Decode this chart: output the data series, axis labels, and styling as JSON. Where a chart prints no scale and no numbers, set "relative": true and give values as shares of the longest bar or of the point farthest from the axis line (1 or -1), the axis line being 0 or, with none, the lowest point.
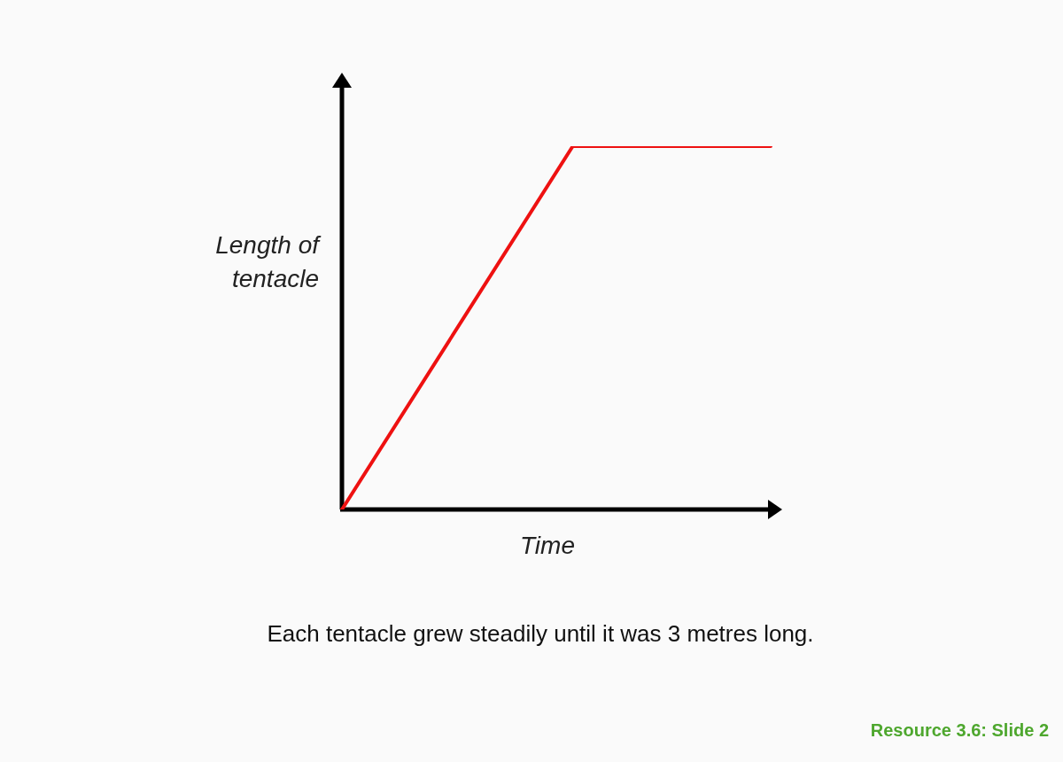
{
  "chart_data": {
    "type": "line",
    "relative": true,
    "marker": "none",
    "xlabel": "Time",
    "ylabel": "Length of tentacle",
    "categories": [
      null,
      null,
      null,
      null,
      null,
      null,
      null,
      null,
      null,
      null,
      null,
      null,
      null,
      null
    ],
    "series": [
      {
        "color": "#ee1111",
        "values": [
          0,
          null,
          null,
          null,
          null,
          null,
          null,
          1,
          null,
          null,
          null,
          null,
          null,
          1
        ]
      }
    ],
    "annotations": [
      "Each tentacle grew steadily until it was 3 metres long.",
      "Resource 3.6: Slide 2"
    ]
  }
}
